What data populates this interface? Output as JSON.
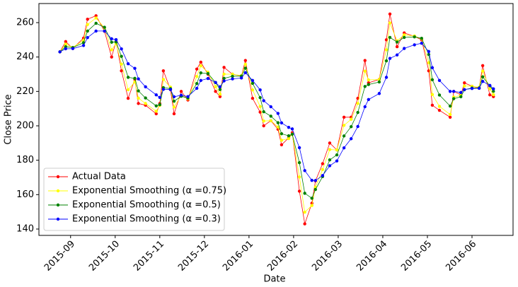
{
  "chart_data": {
    "type": "line",
    "xlabel": "Date",
    "ylabel": "Close Price",
    "x": [
      0.76,
      0.89,
      1.05,
      1.29,
      1.38,
      1.57,
      1.76,
      1.92,
      2.02,
      2.14,
      2.29,
      2.44,
      2.52,
      2.68,
      2.92,
      3.0,
      3.08,
      3.24,
      3.32,
      3.48,
      3.63,
      3.83,
      3.92,
      4.08,
      4.25,
      4.35,
      4.44,
      4.63,
      4.83,
      4.92,
      5.08,
      5.25,
      5.33,
      5.49,
      5.65,
      5.73,
      5.89,
      5.97,
      6.13,
      6.25,
      6.41,
      6.49,
      6.65,
      6.81,
      6.97,
      7.13,
      7.29,
      7.44,
      7.6,
      7.68,
      7.92,
      8.08,
      8.16,
      8.32,
      8.48,
      8.71,
      8.87,
      9.03,
      9.11,
      9.27,
      9.51,
      9.59,
      9.75,
      9.83,
      10.0,
      10.16,
      10.24,
      10.4,
      10.48
    ],
    "xlim": [
      0.29,
      10.92
    ],
    "xticks": [
      {
        "value": 1,
        "label": "2015-09"
      },
      {
        "value": 2,
        "label": "2015-10"
      },
      {
        "value": 3,
        "label": "2015-11"
      },
      {
        "value": 4,
        "label": "2015-12"
      },
      {
        "value": 5,
        "label": "2016-01"
      },
      {
        "value": 6,
        "label": "2016-02"
      },
      {
        "value": 7,
        "label": "2016-03"
      },
      {
        "value": 8,
        "label": "2016-04"
      },
      {
        "value": 9,
        "label": "2016-05"
      },
      {
        "value": 10,
        "label": "2016-06"
      }
    ],
    "ylim": [
      136.3,
      271.1
    ],
    "yticks": [
      140,
      160,
      180,
      200,
      220,
      240,
      260
    ],
    "legend": "lower left",
    "series": [
      {
        "name": "Actual Data",
        "color": "#ff0000",
        "values": [
          243,
          249,
          245,
          251,
          262,
          264,
          255,
          240,
          249,
          232,
          216,
          227,
          213,
          212,
          207,
          213,
          232,
          221,
          207,
          220,
          215,
          233,
          237,
          230,
          220,
          217,
          234,
          230,
          229,
          238,
          216,
          208,
          200,
          203,
          198,
          189,
          193,
          196,
          162,
          143,
          155,
          168,
          178,
          190,
          186,
          205,
          205,
          216,
          238,
          225,
          227,
          250,
          265,
          246,
          254,
          252,
          250,
          232,
          212,
          209,
          205,
          220,
          218,
          225,
          223,
          222,
          235,
          218,
          217
        ]
      },
      {
        "name": "Exponential Smoothing (α =0.75)",
        "color": "#ffff00",
        "values": [
          243,
          247.5,
          245.6,
          249.7,
          258.9,
          262.7,
          256.9,
          244.2,
          247.8,
          235.9,
          221.0,
          225.5,
          216.1,
          213.0,
          208.5,
          211.9,
          227.0,
          222.5,
          210.9,
          217.7,
          215.7,
          228.7,
          234.9,
          231.2,
          222.8,
          218.4,
          230.1,
          230.0,
          229.2,
          235.8,
          220.9,
          211.2,
          202.8,
          203.0,
          199.3,
          191.6,
          192.6,
          195.2,
          170.3,
          149.8,
          153.7,
          164.4,
          174.6,
          186.2,
          186.0,
          200.3,
          203.8,
          213.0,
          231.8,
          226.7,
          226.9,
          244.2,
          259.8,
          249.4,
          252.9,
          252.2,
          250.6,
          236.7,
          218.2,
          211.3,
          206.6,
          216.7,
          217.7,
          223.2,
          223.0,
          222.3,
          231.8,
          221.5,
          218.1
        ]
      },
      {
        "name": "Exponential Smoothing (α =0.5)",
        "color": "#008000",
        "values": [
          243,
          246,
          245.5,
          248.3,
          255.1,
          259.6,
          257.3,
          248.6,
          248.8,
          240.4,
          228.2,
          227.6,
          220.3,
          216.2,
          211.6,
          212.3,
          222.2,
          221.6,
          214.3,
          217.2,
          216.1,
          224.6,
          230.8,
          230.4,
          225.2,
          221.1,
          227.6,
          228.8,
          228.9,
          233.5,
          224.7,
          216.4,
          208.2,
          205.6,
          201.8,
          195.4,
          194.2,
          195.1,
          178.6,
          160.8,
          157.9,
          163.0,
          170.5,
          180.2,
          183.1,
          194.1,
          199.5,
          207.8,
          222.9,
          224.0,
          225.5,
          237.8,
          251.4,
          248.7,
          251.4,
          251.7,
          250.9,
          241.5,
          226.8,
          217.9,
          211.5,
          215.8,
          216.9,
          221.0,
          222.0,
          222.0,
          228.5,
          223.3,
          220.1
        ]
      },
      {
        "name": "Exponential Smoothing (α =0.3)",
        "color": "#0000ff",
        "values": [
          243,
          244.8,
          244.9,
          246.7,
          251.3,
          255.1,
          255.1,
          250.6,
          250.1,
          244.7,
          236.1,
          233.4,
          227.3,
          222.7,
          218.0,
          216.5,
          221.2,
          221.1,
          216.9,
          217.8,
          217.0,
          221.8,
          226.4,
          227.5,
          225.2,
          222.7,
          226.1,
          227.3,
          227.8,
          230.9,
          226.4,
          220.9,
          214.6,
          211.1,
          207.2,
          201.7,
          199.1,
          198.2,
          187.3,
          174.0,
          168.3,
          168.2,
          171.1,
          176.8,
          179.6,
          187.2,
          192.5,
          199.6,
          211.1,
          215.3,
          218.8,
          228.2,
          239.2,
          241.2,
          245.0,
          247.1,
          248.0,
          243.2,
          233.8,
          226.4,
          220.0,
          220.0,
          219.4,
          221.1,
          221.7,
          221.8,
          225.8,
          223.5,
          221.5
        ]
      }
    ]
  }
}
